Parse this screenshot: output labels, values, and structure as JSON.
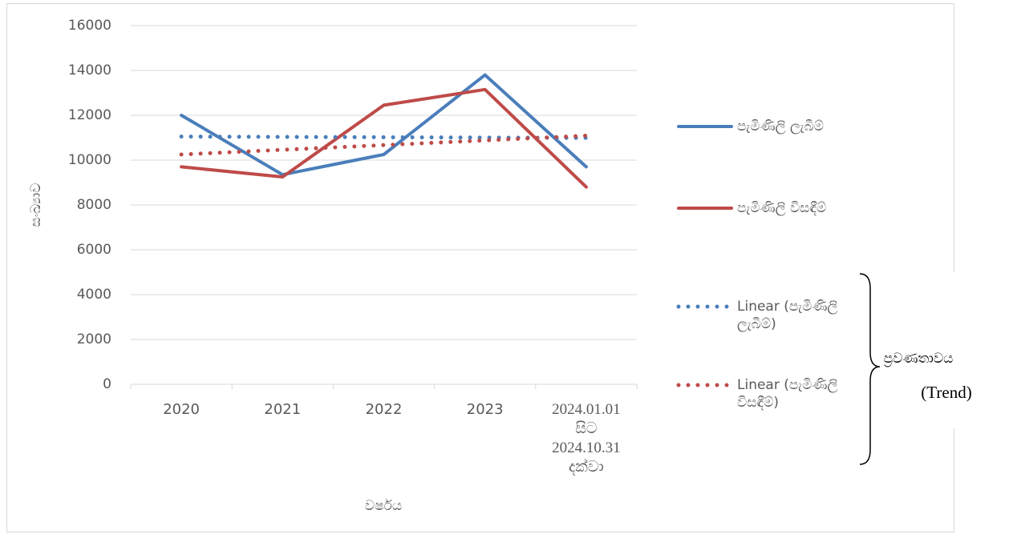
{
  "chart_data": {
    "type": "line",
    "y_label": "සංඛ්‍යාව",
    "x_label": "වර්ෂය",
    "categories": [
      "2020",
      "2021",
      "2022",
      "2023",
      "2024.01.01 සිට 2024.10.31 දක්වා"
    ],
    "series": [
      {
        "name": "පැමිණිලි ලැබීම්",
        "color": "#4a7ebb",
        "style": "solid",
        "values": [
          12000,
          9350,
          10250,
          13800,
          9700
        ]
      },
      {
        "name": "පැමිණිලි විසඳීම්",
        "color": "#be4b48",
        "style": "solid",
        "values": [
          9700,
          9250,
          12450,
          13150,
          8800
        ]
      },
      {
        "name": "Linear (පැමිණිලි ලැබීම්)",
        "color": "#4a7ebb",
        "style": "dotted",
        "values": [
          11050,
          11035,
          11020,
          11005,
          10990
        ]
      },
      {
        "name": "Linear (පැමිණිලි විසඳීම්)",
        "color": "#be4b48",
        "style": "dotted",
        "values": [
          10250,
          10460,
          10670,
          10880,
          11090
        ]
      }
    ],
    "ylim": [
      0,
      16000
    ],
    "yticks": [
      0,
      2000,
      4000,
      6000,
      8000,
      10000,
      12000,
      14000,
      16000
    ],
    "grid": true,
    "legend": "right",
    "annotation": {
      "text": "ප්‍රවණතාවය",
      "subtext": "(Trend)"
    }
  }
}
